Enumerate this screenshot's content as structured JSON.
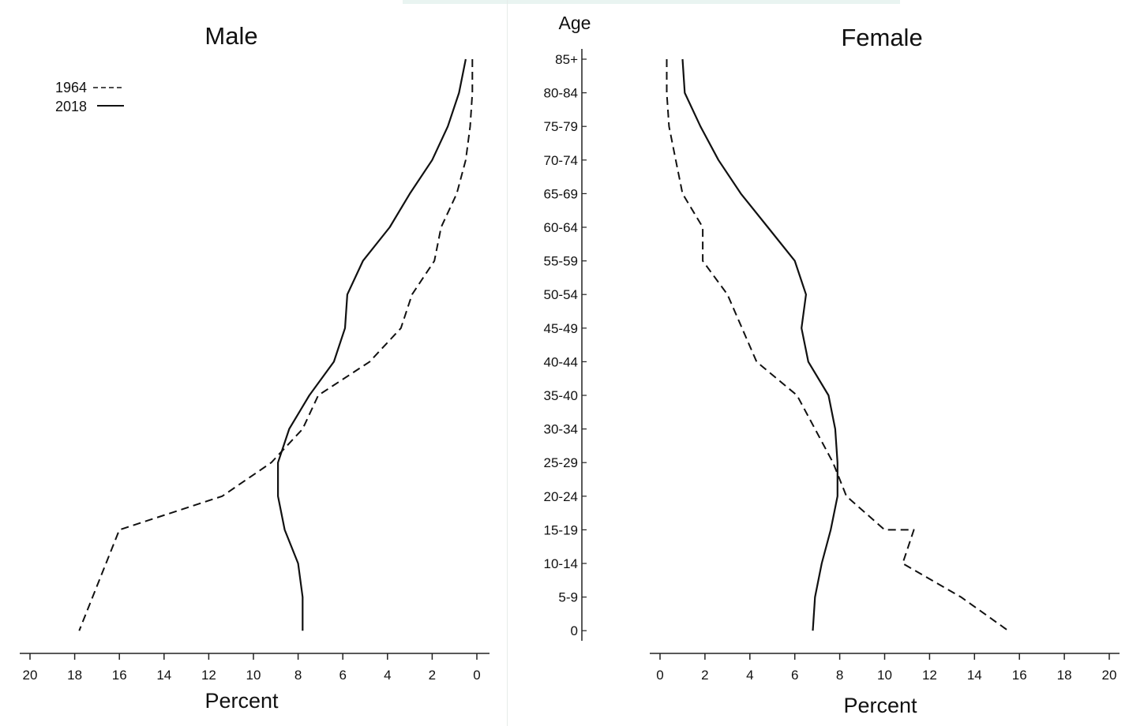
{
  "chart_data": [
    {
      "type": "line",
      "title": "Male",
      "xlabel": "Percent",
      "x_direction": "reversed",
      "xlim": [
        0,
        20
      ],
      "x_ticks": [
        "20",
        "18",
        "16",
        "14",
        "12",
        "10",
        "8",
        "6",
        "4",
        "2",
        "0"
      ],
      "legend": {
        "placement": "top-left",
        "entries": [
          {
            "label": "1964",
            "style": "dashed"
          },
          {
            "label": "2018",
            "style": "solid"
          }
        ]
      },
      "series": [
        {
          "name": "1964",
          "style": "dashed",
          "x": [
            0.2,
            0.2,
            0.3,
            0.5,
            0.9,
            1.6,
            1.9,
            2.9,
            3.4,
            4.8,
            7.1,
            7.8,
            9.2,
            11.4,
            16.0,
            17.8
          ],
          "y": [
            "85+",
            "80-84",
            "75-79",
            "70-74",
            "65-69",
            "60-64",
            "55-59",
            "50-54",
            "45-49",
            "40-44",
            "35-40",
            "30-34",
            "25-29",
            "20-24",
            "15-19",
            "0"
          ]
        },
        {
          "name": "2018",
          "style": "solid",
          "x": [
            0.5,
            0.8,
            1.3,
            2.0,
            3.0,
            3.9,
            5.1,
            5.8,
            5.9,
            6.4,
            7.5,
            8.4,
            8.9,
            8.9,
            8.6,
            8.0,
            7.8,
            7.8
          ],
          "y": [
            "85+",
            "80-84",
            "75-79",
            "70-74",
            "65-69",
            "60-64",
            "55-59",
            "50-54",
            "45-49",
            "40-44",
            "35-40",
            "30-34",
            "25-29",
            "20-24",
            "15-19",
            "10-14",
            "5-9",
            "0"
          ]
        }
      ]
    },
    {
      "type": "line",
      "title": "Female",
      "xlabel": "Percent",
      "ylabel": "Age",
      "xlim": [
        0,
        20
      ],
      "x_ticks": [
        "0",
        "2",
        "4",
        "6",
        "8",
        "10",
        "12",
        "14",
        "16",
        "18",
        "20"
      ],
      "y_categories": [
        "85+",
        "80-84",
        "75-79",
        "70-74",
        "65-69",
        "60-64",
        "55-59",
        "50-54",
        "45-49",
        "40-44",
        "35-40",
        "30-34",
        "25-29",
        "20-24",
        "15-19",
        "10-14",
        "5-9",
        "0"
      ],
      "series": [
        {
          "name": "1964",
          "style": "dashed",
          "x": [
            0.3,
            0.3,
            0.4,
            0.7,
            1.0,
            1.9,
            1.9,
            3.0,
            4.3,
            6.1,
            7.7,
            8.3,
            10.0,
            11.3,
            10.8,
            13.4,
            15.5
          ],
          "y": [
            "85+",
            "80-84",
            "75-79",
            "70-74",
            "65-69",
            "60-64",
            "55-59",
            "50-54",
            "40-44",
            "35-40",
            "25-29",
            "20-24",
            "15-19",
            "15-19",
            "10-14",
            "5-9",
            "0"
          ]
        },
        {
          "name": "2018",
          "style": "solid",
          "x": [
            1.0,
            1.1,
            1.8,
            2.6,
            3.6,
            4.8,
            6.0,
            6.5,
            6.3,
            6.6,
            7.5,
            7.8,
            7.9,
            7.9,
            7.6,
            7.2,
            6.9,
            6.8
          ],
          "y": [
            "85+",
            "80-84",
            "75-79",
            "70-74",
            "65-69",
            "60-64",
            "55-59",
            "50-54",
            "45-49",
            "40-44",
            "35-40",
            "30-34",
            "25-29",
            "20-24",
            "15-19",
            "10-14",
            "5-9",
            "0"
          ]
        }
      ]
    }
  ]
}
